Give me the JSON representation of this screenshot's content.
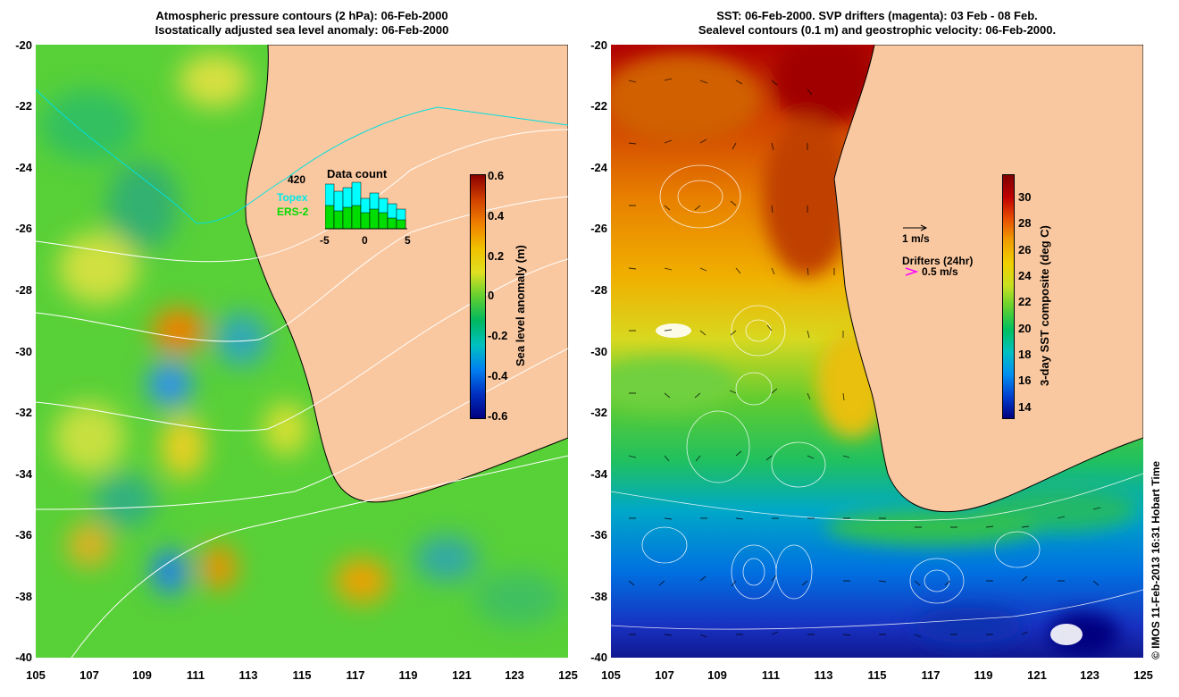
{
  "left": {
    "title_line1": "Atmospheric pressure contours (2 hPa): 06-Feb-2000",
    "title_line2": "Isostatically adjusted sea level anomaly: 06-Feb-2000",
    "yticks": [
      "-20",
      "-22",
      "-24",
      "-26",
      "-28",
      "-30",
      "-32",
      "-34",
      "-36",
      "-38",
      "-40"
    ],
    "xticks": [
      "105",
      "107",
      "109",
      "111",
      "113",
      "115",
      "117",
      "119",
      "121",
      "123",
      "125"
    ],
    "colorbar_ticks": [
      "0.6",
      "0.4",
      "0.2",
      "0",
      "-0.2",
      "-0.4",
      "-0.6"
    ],
    "colorbar_title": "Sea level anomaly (m)",
    "inset": {
      "title": "Data count",
      "ymax": "420",
      "xticks": [
        "-5",
        "0",
        "5"
      ],
      "legend_topex": "Topex",
      "legend_ers2": "ERS-2",
      "topex_color": "#00ffff",
      "ers2_color": "#00dd00"
    }
  },
  "right": {
    "title_line1": "SST: 06-Feb-2000. SVP drifters (magenta): 03 Feb - 08 Feb.",
    "title_line2": "Sealevel contours (0.1 m) and geostrophic velocity: 06-Feb-2000.",
    "yticks": [
      "-20",
      "-22",
      "-24",
      "-26",
      "-28",
      "-30",
      "-32",
      "-34",
      "-36",
      "-38",
      "-40"
    ],
    "xticks": [
      "105",
      "107",
      "109",
      "111",
      "113",
      "115",
      "117",
      "119",
      "121",
      "123",
      "125"
    ],
    "colorbar_ticks": [
      "30",
      "28",
      "26",
      "24",
      "22",
      "20",
      "18",
      "16",
      "14"
    ],
    "colorbar_title": "3-day SST composite (deg C)",
    "scale_label": "1 m/s",
    "drifters_label": "Drifters (24hr)",
    "drifter_speed": "0.5 m/s",
    "drifter_color": "#ff00ff"
  },
  "credit": "© IMOS 11-Feb-2013 16:31 Hobart Time",
  "colors": {
    "land": "#fac8a0",
    "contour": "#ffffff",
    "coast": "#000000"
  }
}
